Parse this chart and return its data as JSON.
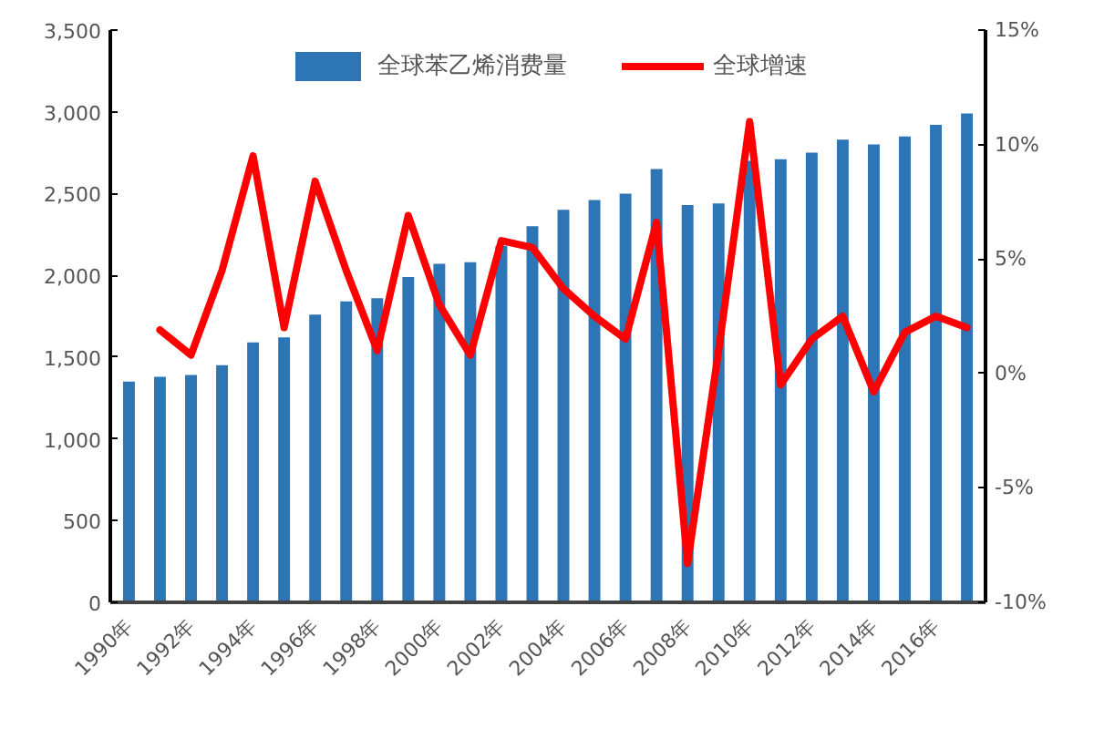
{
  "chart_data": {
    "type": "bar",
    "categories": [
      "1990年",
      null,
      "1992年",
      null,
      "1994年",
      null,
      "1996年",
      null,
      "1998年",
      null,
      "2000年",
      null,
      "2002年",
      null,
      "2004年",
      null,
      "2006年",
      null,
      "2008年",
      null,
      "2010年",
      null,
      "2012年",
      null,
      "2014年",
      null,
      "2016年",
      null
    ],
    "series": [
      {
        "name": "全球苯乙烯消费量",
        "color": "#2e75b6",
        "values": [
          1350,
          1380,
          1390,
          1450,
          1590,
          1620,
          1760,
          1840,
          1860,
          1990,
          2070,
          2080,
          2180,
          2300,
          2400,
          2460,
          2500,
          2650,
          2430,
          2440,
          2700,
          2710,
          2750,
          2830,
          2800,
          2850,
          2920,
          2990
        ]
      },
      {
        "name": "全球增速",
        "type": "line",
        "axis": "y2",
        "color": "#ff0000",
        "values": [
          null,
          1.9,
          0.8,
          4.5,
          9.5,
          2.0,
          8.4,
          4.5,
          1.0,
          6.9,
          3.0,
          0.8,
          5.8,
          5.5,
          3.7,
          2.5,
          1.5,
          6.6,
          -8.3,
          1.0,
          11.0,
          -0.5,
          1.5,
          2.5,
          -0.8,
          1.8,
          2.5,
          2.0
        ]
      }
    ],
    "ylim": [
      0,
      3500
    ],
    "yticks": [
      {
        "value": 0,
        "label": "0"
      },
      {
        "value": 500,
        "label": "500"
      },
      {
        "value": 1000,
        "label": "1,000"
      },
      {
        "value": 1500,
        "label": "1,500"
      },
      {
        "value": 2000,
        "label": "2,000"
      },
      {
        "value": 2500,
        "label": "2,500"
      },
      {
        "value": 3000,
        "label": "3,000"
      },
      {
        "value": 3500,
        "label": "3,500"
      }
    ],
    "y2lim": [
      -10,
      15
    ],
    "y2ticks": [
      {
        "value": -10,
        "label": "-10%"
      },
      {
        "value": -5,
        "label": "-5%"
      },
      {
        "value": 0,
        "label": "0%"
      },
      {
        "value": 5,
        "label": "5%"
      },
      {
        "value": 10,
        "label": "10%"
      },
      {
        "value": 15,
        "label": "15%"
      }
    ],
    "legend": "top",
    "grid": false,
    "line_style": "solid",
    "marker": "none"
  }
}
